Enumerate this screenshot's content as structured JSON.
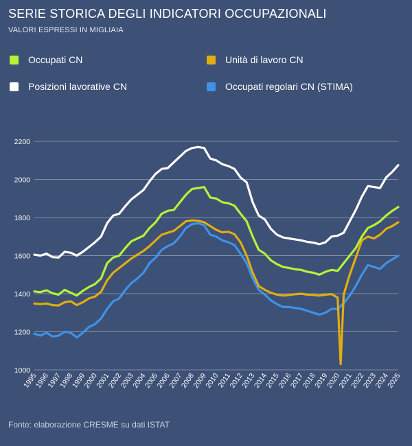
{
  "header": {
    "title": "SERIE STORICA DEGLI INDICATORI OCCUPAZIONALI",
    "subtitle": "VALORI ESPRESSI IN MIGLIAIA"
  },
  "footer": {
    "source": "Fonte: elaborazione CRESME su dati ISTAT"
  },
  "colors": {
    "background": "#3d5075",
    "occupati": "#b5f23a",
    "posizioni": "#ffffff",
    "unita": "#e0ad12",
    "regolari": "#3f92e8"
  },
  "chart_data": {
    "type": "line",
    "title": "SERIE STORICA DEGLI INDICATORI OCCUPAZIONALI",
    "subtitle": "VALORI ESPRESSI IN MIGLIAIA",
    "x_ticks": [
      "1995",
      "1996",
      "1997",
      "1998",
      "1999",
      "2000",
      "2001",
      "2002",
      "2003",
      "2004",
      "2005",
      "2006",
      "2007",
      "2008",
      "2009",
      "2010",
      "2011",
      "2012",
      "2013",
      "2014",
      "2015",
      "2016",
      "2017",
      "2018",
      "2019",
      "2020",
      "2021",
      "2022",
      "2023",
      "2024",
      "2025"
    ],
    "y_ticks": [
      1000,
      1200,
      1400,
      1600,
      1800,
      2000,
      2200
    ],
    "ylim": [
      1000,
      2200
    ],
    "xlim": [
      1995,
      2025
    ],
    "grid": "horizontal",
    "legend_placement": "top",
    "series": [
      {
        "name": "Occupati CN",
        "color": "#b5f23a",
        "points": [
          [
            1995,
            1412
          ],
          [
            1995.5,
            1408
          ],
          [
            1996,
            1418
          ],
          [
            1996.5,
            1402
          ],
          [
            1997,
            1395
          ],
          [
            1997.5,
            1420
          ],
          [
            1998,
            1405
          ],
          [
            1998.5,
            1390
          ],
          [
            1999,
            1415
          ],
          [
            1999.5,
            1435
          ],
          [
            2000,
            1450
          ],
          [
            2000.5,
            1480
          ],
          [
            2001,
            1560
          ],
          [
            2001.5,
            1590
          ],
          [
            2002,
            1600
          ],
          [
            2002.5,
            1640
          ],
          [
            2003,
            1675
          ],
          [
            2003.5,
            1690
          ],
          [
            2004,
            1705
          ],
          [
            2004.5,
            1745
          ],
          [
            2005,
            1775
          ],
          [
            2005.5,
            1820
          ],
          [
            2006,
            1835
          ],
          [
            2006.5,
            1840
          ],
          [
            2007,
            1880
          ],
          [
            2007.5,
            1920
          ],
          [
            2008,
            1950
          ],
          [
            2008.5,
            1955
          ],
          [
            2009,
            1960
          ],
          [
            2009.5,
            1905
          ],
          [
            2010,
            1900
          ],
          [
            2010.5,
            1880
          ],
          [
            2011,
            1875
          ],
          [
            2011.5,
            1862
          ],
          [
            2012,
            1820
          ],
          [
            2012.5,
            1780
          ],
          [
            2013,
            1700
          ],
          [
            2013.5,
            1630
          ],
          [
            2014,
            1610
          ],
          [
            2014.5,
            1575
          ],
          [
            2015,
            1555
          ],
          [
            2015.5,
            1540
          ],
          [
            2016,
            1535
          ],
          [
            2016.5,
            1528
          ],
          [
            2017,
            1525
          ],
          [
            2017.5,
            1515
          ],
          [
            2018,
            1510
          ],
          [
            2018.5,
            1500
          ],
          [
            2019,
            1515
          ],
          [
            2019.5,
            1525
          ],
          [
            2020,
            1520
          ],
          [
            2020.5,
            1560
          ],
          [
            2021,
            1600
          ],
          [
            2021.5,
            1640
          ],
          [
            2022,
            1700
          ],
          [
            2022.5,
            1745
          ],
          [
            2023,
            1760
          ],
          [
            2023.5,
            1780
          ],
          [
            2024,
            1810
          ],
          [
            2024.5,
            1835
          ],
          [
            2025,
            1855
          ]
        ]
      },
      {
        "name": "Posizioni lavorative CN",
        "color": "#ffffff",
        "points": [
          [
            1995,
            1605
          ],
          [
            1995.5,
            1600
          ],
          [
            1996,
            1610
          ],
          [
            1996.5,
            1592
          ],
          [
            1997,
            1590
          ],
          [
            1997.5,
            1620
          ],
          [
            1998,
            1615
          ],
          [
            1998.5,
            1600
          ],
          [
            1999,
            1620
          ],
          [
            1999.5,
            1645
          ],
          [
            2000,
            1670
          ],
          [
            2000.5,
            1700
          ],
          [
            2001,
            1770
          ],
          [
            2001.5,
            1810
          ],
          [
            2002,
            1820
          ],
          [
            2002.5,
            1860
          ],
          [
            2003,
            1895
          ],
          [
            2003.5,
            1920
          ],
          [
            2004,
            1945
          ],
          [
            2004.5,
            1990
          ],
          [
            2005,
            2030
          ],
          [
            2005.5,
            2055
          ],
          [
            2006,
            2060
          ],
          [
            2006.5,
            2090
          ],
          [
            2007,
            2120
          ],
          [
            2007.5,
            2150
          ],
          [
            2008,
            2165
          ],
          [
            2008.5,
            2170
          ],
          [
            2009,
            2165
          ],
          [
            2009.5,
            2110
          ],
          [
            2010,
            2100
          ],
          [
            2010.5,
            2080
          ],
          [
            2011,
            2070
          ],
          [
            2011.5,
            2055
          ],
          [
            2012,
            2010
          ],
          [
            2012.5,
            1985
          ],
          [
            2013,
            1880
          ],
          [
            2013.5,
            1810
          ],
          [
            2014,
            1790
          ],
          [
            2014.5,
            1740
          ],
          [
            2015,
            1710
          ],
          [
            2015.5,
            1695
          ],
          [
            2016,
            1690
          ],
          [
            2016.5,
            1685
          ],
          [
            2017,
            1680
          ],
          [
            2017.5,
            1672
          ],
          [
            2018,
            1668
          ],
          [
            2018.5,
            1660
          ],
          [
            2019,
            1670
          ],
          [
            2019.5,
            1700
          ],
          [
            2020,
            1705
          ],
          [
            2020.5,
            1720
          ],
          [
            2021,
            1780
          ],
          [
            2021.5,
            1840
          ],
          [
            2022,
            1910
          ],
          [
            2022.5,
            1965
          ],
          [
            2023,
            1960
          ],
          [
            2023.5,
            1955
          ],
          [
            2024,
            2010
          ],
          [
            2024.5,
            2040
          ],
          [
            2025,
            2075
          ]
        ]
      },
      {
        "name": "Unità di lavoro CN",
        "color": "#e0ad12",
        "points": [
          [
            1995,
            1348
          ],
          [
            1995.5,
            1345
          ],
          [
            1996,
            1348
          ],
          [
            1996.5,
            1340
          ],
          [
            1997,
            1338
          ],
          [
            1997.5,
            1355
          ],
          [
            1998,
            1360
          ],
          [
            1998.5,
            1340
          ],
          [
            1999,
            1355
          ],
          [
            1999.5,
            1375
          ],
          [
            2000,
            1385
          ],
          [
            2000.5,
            1410
          ],
          [
            2001,
            1470
          ],
          [
            2001.5,
            1510
          ],
          [
            2002,
            1535
          ],
          [
            2002.5,
            1560
          ],
          [
            2003,
            1585
          ],
          [
            2003.5,
            1605
          ],
          [
            2004,
            1625
          ],
          [
            2004.5,
            1650
          ],
          [
            2005,
            1680
          ],
          [
            2005.5,
            1710
          ],
          [
            2006,
            1720
          ],
          [
            2006.5,
            1730
          ],
          [
            2007,
            1755
          ],
          [
            2007.5,
            1780
          ],
          [
            2008,
            1785
          ],
          [
            2008.5,
            1783
          ],
          [
            2009,
            1775
          ],
          [
            2009.5,
            1755
          ],
          [
            2010,
            1735
          ],
          [
            2010.5,
            1722
          ],
          [
            2011,
            1725
          ],
          [
            2011.5,
            1712
          ],
          [
            2012,
            1670
          ],
          [
            2012.5,
            1600
          ],
          [
            2013,
            1510
          ],
          [
            2013.5,
            1440
          ],
          [
            2014,
            1420
          ],
          [
            2014.5,
            1405
          ],
          [
            2015,
            1395
          ],
          [
            2015.5,
            1390
          ],
          [
            2016,
            1393
          ],
          [
            2016.5,
            1397
          ],
          [
            2017,
            1400
          ],
          [
            2017.5,
            1395
          ],
          [
            2018,
            1393
          ],
          [
            2018.5,
            1390
          ],
          [
            2019,
            1395
          ],
          [
            2019.5,
            1398
          ],
          [
            2020,
            1380
          ],
          [
            2020.25,
            1030
          ],
          [
            2020.5,
            1395
          ],
          [
            2021,
            1500
          ],
          [
            2021.5,
            1590
          ],
          [
            2022,
            1680
          ],
          [
            2022.5,
            1700
          ],
          [
            2023,
            1690
          ],
          [
            2023.5,
            1710
          ],
          [
            2024,
            1740
          ],
          [
            2024.5,
            1755
          ],
          [
            2025,
            1775
          ]
        ]
      },
      {
        "name": "Occupati regolari CN (STIMA)",
        "color": "#3f92e8",
        "points": [
          [
            1995,
            1190
          ],
          [
            1995.5,
            1180
          ],
          [
            1996,
            1195
          ],
          [
            1996.5,
            1175
          ],
          [
            1997,
            1180
          ],
          [
            1997.5,
            1200
          ],
          [
            1998,
            1195
          ],
          [
            1998.5,
            1170
          ],
          [
            1999,
            1195
          ],
          [
            1999.5,
            1225
          ],
          [
            2000,
            1240
          ],
          [
            2000.5,
            1270
          ],
          [
            2001,
            1320
          ],
          [
            2001.5,
            1360
          ],
          [
            2002,
            1375
          ],
          [
            2002.5,
            1420
          ],
          [
            2003,
            1455
          ],
          [
            2003.5,
            1480
          ],
          [
            2004,
            1510
          ],
          [
            2004.5,
            1560
          ],
          [
            2005,
            1590
          ],
          [
            2005.5,
            1630
          ],
          [
            2006,
            1650
          ],
          [
            2006.5,
            1665
          ],
          [
            2007,
            1700
          ],
          [
            2007.5,
            1745
          ],
          [
            2008,
            1765
          ],
          [
            2008.5,
            1770
          ],
          [
            2009,
            1760
          ],
          [
            2009.5,
            1710
          ],
          [
            2010,
            1700
          ],
          [
            2010.5,
            1680
          ],
          [
            2011,
            1670
          ],
          [
            2011.5,
            1655
          ],
          [
            2012,
            1610
          ],
          [
            2012.5,
            1560
          ],
          [
            2013,
            1480
          ],
          [
            2013.5,
            1420
          ],
          [
            2014,
            1395
          ],
          [
            2014.5,
            1365
          ],
          [
            2015,
            1345
          ],
          [
            2015.5,
            1330
          ],
          [
            2016,
            1330
          ],
          [
            2016.5,
            1325
          ],
          [
            2017,
            1320
          ],
          [
            2017.5,
            1310
          ],
          [
            2018,
            1300
          ],
          [
            2018.5,
            1290
          ],
          [
            2019,
            1300
          ],
          [
            2019.5,
            1320
          ],
          [
            2020,
            1320
          ],
          [
            2020.5,
            1350
          ],
          [
            2021,
            1390
          ],
          [
            2021.5,
            1440
          ],
          [
            2022,
            1500
          ],
          [
            2022.5,
            1550
          ],
          [
            2023,
            1540
          ],
          [
            2023.5,
            1530
          ],
          [
            2024,
            1560
          ],
          [
            2024.5,
            1580
          ],
          [
            2025,
            1600
          ]
        ]
      }
    ]
  }
}
